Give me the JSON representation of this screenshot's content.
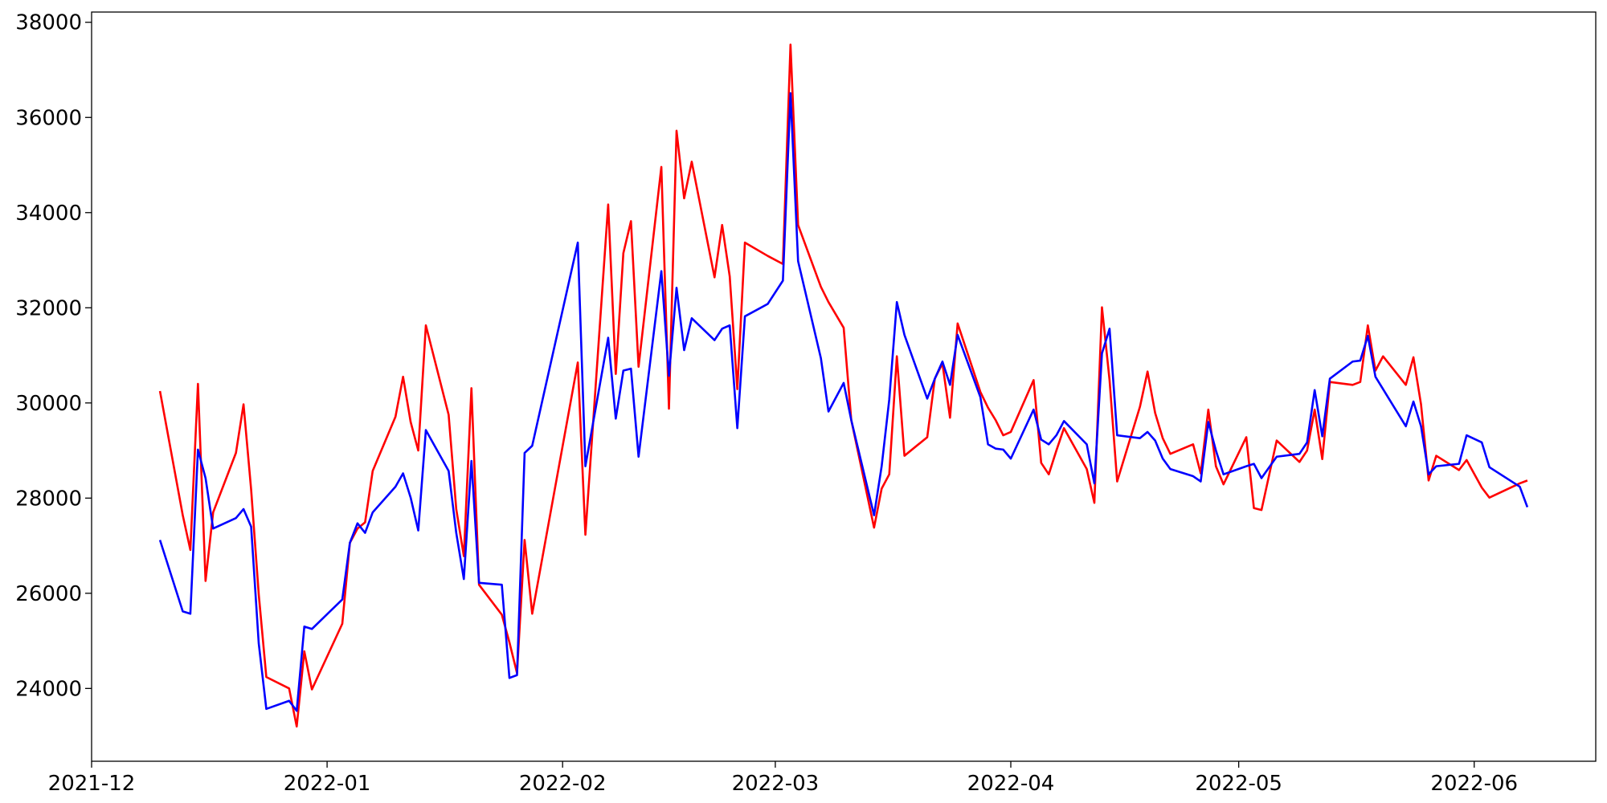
{
  "chart_data": {
    "type": "line",
    "x": [
      "2021-12-10",
      "2021-12-13",
      "2021-12-14",
      "2021-12-15",
      "2021-12-16",
      "2021-12-17",
      "2021-12-20",
      "2021-12-21",
      "2021-12-22",
      "2021-12-23",
      "2021-12-24",
      "2021-12-27",
      "2021-12-28",
      "2021-12-29",
      "2021-12-30",
      "2022-01-03",
      "2022-01-04",
      "2022-01-05",
      "2022-01-06",
      "2022-01-07",
      "2022-01-10",
      "2022-01-11",
      "2022-01-12",
      "2022-01-13",
      "2022-01-14",
      "2022-01-17",
      "2022-01-18",
      "2022-01-19",
      "2022-01-20",
      "2022-01-21",
      "2022-01-24",
      "2022-01-25",
      "2022-01-26",
      "2022-01-27",
      "2022-01-28",
      "2022-02-03",
      "2022-02-04",
      "2022-02-07",
      "2022-02-08",
      "2022-02-09",
      "2022-02-10",
      "2022-02-11",
      "2022-02-14",
      "2022-02-15",
      "2022-02-16",
      "2022-02-17",
      "2022-02-18",
      "2022-02-21",
      "2022-02-22",
      "2022-02-23",
      "2022-02-24",
      "2022-02-25",
      "2022-02-28",
      "2022-03-02",
      "2022-03-03",
      "2022-03-04",
      "2022-03-07",
      "2022-03-08",
      "2022-03-10",
      "2022-03-11",
      "2022-03-14",
      "2022-03-15",
      "2022-03-16",
      "2022-03-17",
      "2022-03-18",
      "2022-03-21",
      "2022-03-22",
      "2022-03-23",
      "2022-03-24",
      "2022-03-25",
      "2022-03-28",
      "2022-03-29",
      "2022-03-30",
      "2022-03-31",
      "2022-04-01",
      "2022-04-04",
      "2022-04-05",
      "2022-04-06",
      "2022-04-07",
      "2022-04-08",
      "2022-04-11",
      "2022-04-12",
      "2022-04-13",
      "2022-04-14",
      "2022-04-15",
      "2022-04-18",
      "2022-04-19",
      "2022-04-20",
      "2022-04-21",
      "2022-04-22",
      "2022-04-25",
      "2022-04-26",
      "2022-04-27",
      "2022-04-28",
      "2022-04-29",
      "2022-05-02",
      "2022-05-03",
      "2022-05-04",
      "2022-05-06",
      "2022-05-09",
      "2022-05-10",
      "2022-05-11",
      "2022-05-12",
      "2022-05-13",
      "2022-05-16",
      "2022-05-17",
      "2022-05-18",
      "2022-05-19",
      "2022-05-20",
      "2022-05-23",
      "2022-05-24",
      "2022-05-25",
      "2022-05-26",
      "2022-05-27",
      "2022-05-30",
      "2022-05-31",
      "2022-06-02",
      "2022-06-03",
      "2022-06-07",
      "2022-06-08"
    ],
    "series": [
      {
        "color": "#ff0000",
        "values": [
          30250,
          27640,
          26910,
          30400,
          26260,
          27700,
          28950,
          29970,
          28180,
          25980,
          24240,
          24000,
          23200,
          24780,
          23980,
          25360,
          27060,
          27360,
          27490,
          28570,
          29710,
          30550,
          29600,
          29000,
          31630,
          29750,
          27770,
          26780,
          30310,
          26180,
          25550,
          24970,
          24320,
          27120,
          25570,
          30850,
          27230,
          34170,
          30610,
          33150,
          33820,
          30760,
          34960,
          29880,
          35720,
          34300,
          35070,
          32640,
          33740,
          32660,
          30290,
          33370,
          33090,
          32920,
          37530,
          33740,
          32440,
          32120,
          31580,
          29640,
          27380,
          28200,
          28500,
          30980,
          28890,
          29280,
          30510,
          30830,
          29690,
          31670,
          30230,
          29900,
          29640,
          29320,
          29390,
          30480,
          28740,
          28500,
          29000,
          29470,
          28610,
          27900,
          32010,
          30480,
          28350,
          29920,
          30660,
          29790,
          29260,
          28930,
          29130,
          28520,
          29860,
          28670,
          28290,
          29280,
          27790,
          27750,
          29210,
          28760,
          29000,
          29860,
          28820,
          30440,
          30380,
          30440,
          31630,
          30680,
          30980,
          30380,
          30960,
          29970,
          28370,
          28890,
          28590,
          28800,
          28220,
          28010,
          28310,
          28370
        ]
      },
      {
        "color": "#0000ff",
        "values": [
          27120,
          25620,
          25570,
          29020,
          28420,
          27360,
          27580,
          27770,
          27400,
          24950,
          23570,
          23740,
          23530,
          25300,
          25250,
          25870,
          27060,
          27470,
          27270,
          27700,
          28240,
          28520,
          28010,
          27320,
          29430,
          28570,
          27270,
          26300,
          28780,
          26220,
          26180,
          24220,
          24280,
          28950,
          29100,
          33370,
          28670,
          31370,
          29670,
          30680,
          30720,
          28870,
          32770,
          30570,
          32420,
          31110,
          31780,
          31320,
          31560,
          31630,
          29470,
          31820,
          32080,
          32570,
          36510,
          32980,
          30940,
          29820,
          30420,
          29640,
          27640,
          28670,
          30070,
          32120,
          31430,
          30090,
          30510,
          30870,
          30380,
          31430,
          30120,
          29130,
          29040,
          29020,
          28830,
          29860,
          29230,
          29130,
          29320,
          29620,
          29130,
          28310,
          31040,
          31560,
          29320,
          29260,
          29390,
          29210,
          28830,
          28610,
          28460,
          28350,
          29600,
          29000,
          28500,
          28670,
          28720,
          28420,
          28870,
          28930,
          29170,
          30270,
          29300,
          30510,
          30870,
          30890,
          31410,
          30550,
          30290,
          29510,
          30030,
          29510,
          28500,
          28670,
          28720,
          29320,
          29170,
          28650,
          28240,
          27810
        ]
      }
    ],
    "xlim": [
      "2021-12-01",
      "2022-06-17"
    ],
    "xticks": [
      {
        "value": "2021-12-01",
        "label": "2021-12"
      },
      {
        "value": "2022-01-01",
        "label": "2022-01"
      },
      {
        "value": "2022-02-01",
        "label": "2022-02"
      },
      {
        "value": "2022-03-01",
        "label": "2022-03"
      },
      {
        "value": "2022-04-01",
        "label": "2022-04"
      },
      {
        "value": "2022-05-01",
        "label": "2022-05"
      },
      {
        "value": "2022-06-01",
        "label": "2022-06"
      }
    ],
    "ylim": [
      22470,
      38215
    ],
    "yticks": [
      24000,
      26000,
      28000,
      30000,
      32000,
      34000,
      36000,
      38000
    ],
    "grid": false
  }
}
